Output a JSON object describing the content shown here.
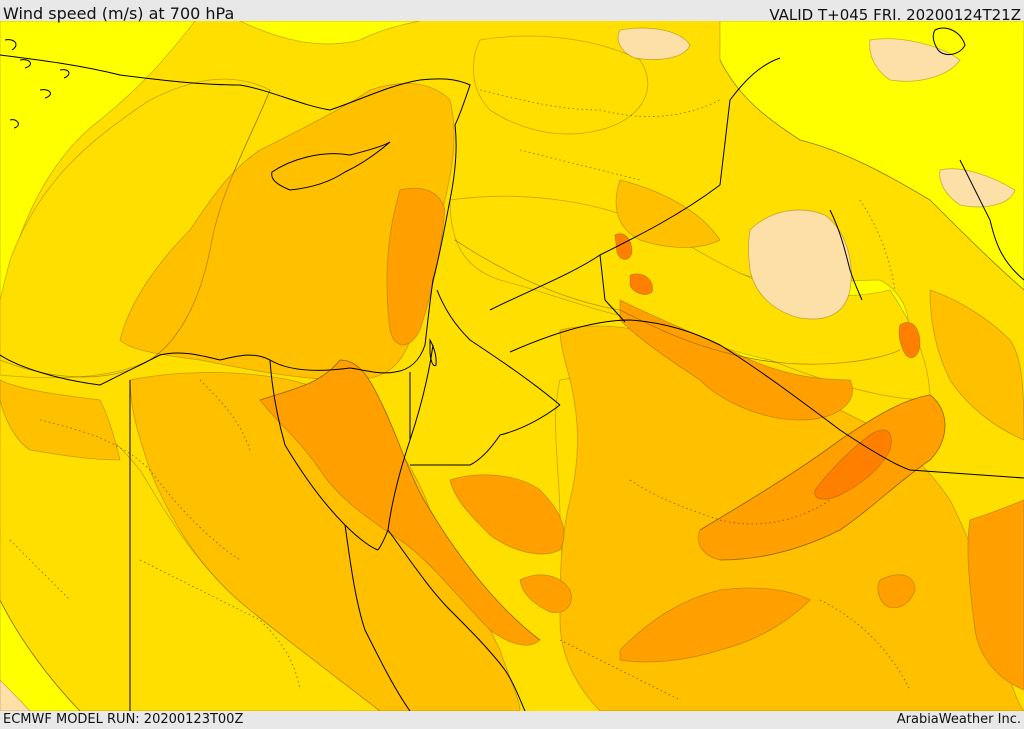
{
  "header": {
    "title": "Wind speed (m/s) at 700 hPa",
    "valid_time": "VALID T+045 FRI. 20200124T21Z"
  },
  "footer": {
    "model_run": "ECMWF MODEL RUN: 20200123T00Z",
    "credit": "ArabiaWeather Inc."
  },
  "map": {
    "variable": "wind speed",
    "pressure_level": "700 hPa",
    "units": "m/s",
    "region": "Eastern Mediterranean / Middle East",
    "palette": {
      "band_1": "#ffff00",
      "band_2": "#ffdf00",
      "band_3": "#ffc000",
      "band_4": "#ffa000",
      "band_5": "#ff8000",
      "calm_patch": "#fddfa8",
      "boundary": "#000000"
    }
  }
}
